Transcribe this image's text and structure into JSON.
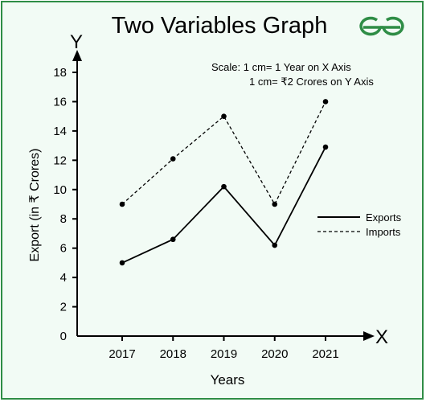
{
  "chart_data": {
    "type": "line",
    "title": "Two Variables Graph",
    "logo_text": "GeeksforGeeks",
    "xlabel": "Years",
    "ylabel": "Export (in ₹ Crores)",
    "x_axis_letter": "X",
    "y_axis_letter": "Y",
    "categories": [
      "2017",
      "2018",
      "2019",
      "2020",
      "2021"
    ],
    "yticks": [
      0,
      2,
      4,
      6,
      8,
      10,
      12,
      14,
      16,
      18
    ],
    "ylim": [
      0,
      18
    ],
    "grid": false,
    "legend_position": "right",
    "scale_note": {
      "line1": "Scale: 1 cm= 1 Year on X Axis",
      "line2": "1 cm= ₹2 Crores on Y Axis"
    },
    "series": [
      {
        "name": "Exports",
        "values": [
          5,
          6.6,
          10.2,
          6.2,
          12.9
        ],
        "style": "solid",
        "color": "#000000"
      },
      {
        "name": "Imports",
        "values": [
          9,
          12.1,
          15,
          9,
          16
        ],
        "style": "dashed",
        "color": "#000000"
      }
    ],
    "colors": {
      "border": "#2f8d46",
      "background": "#f2fbf5",
      "logo": "#2f8d46"
    }
  }
}
